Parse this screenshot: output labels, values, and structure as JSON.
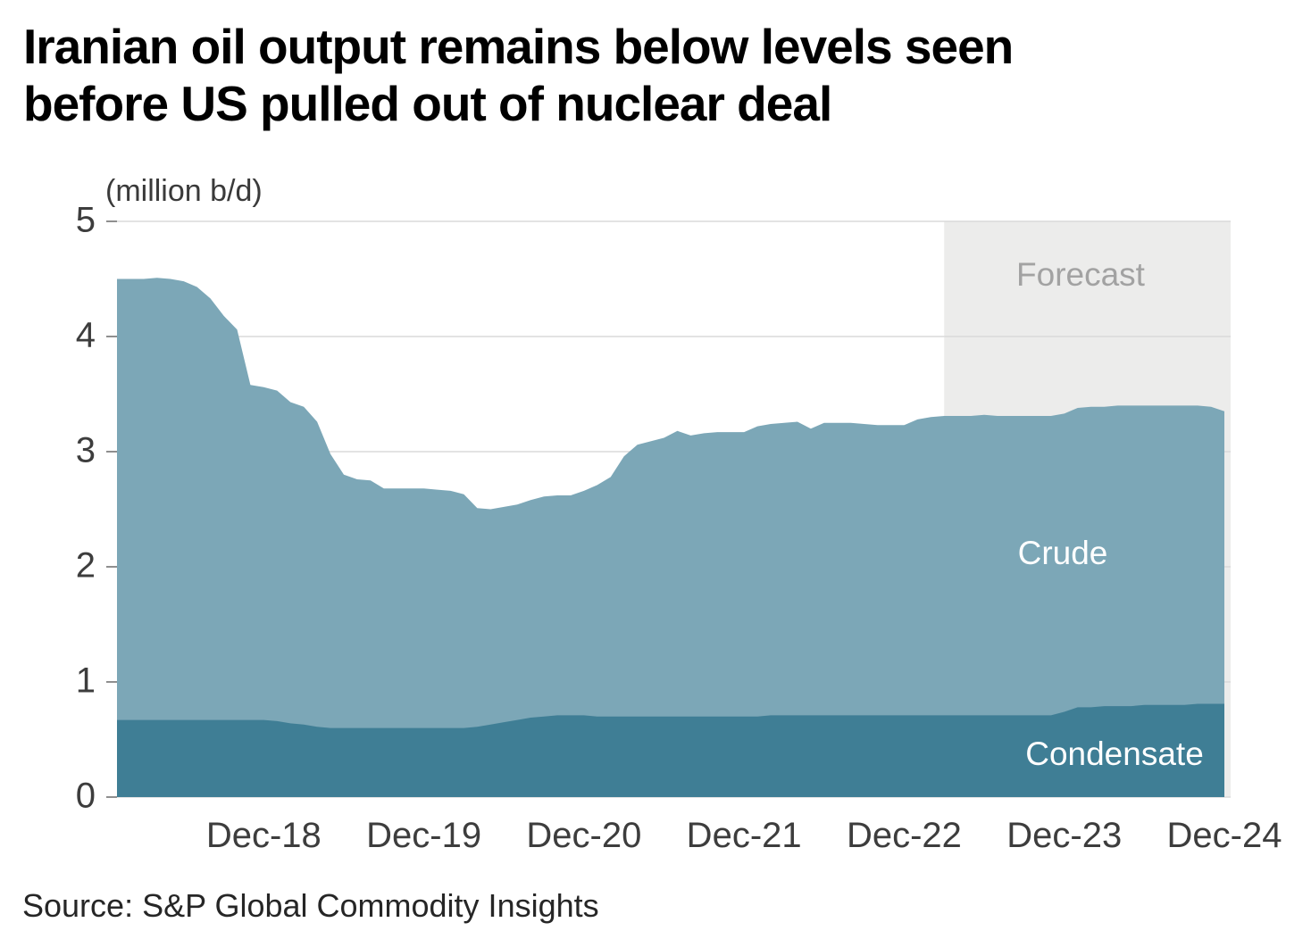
{
  "header": {
    "title_line1": "Iranian oil output remains below levels seen",
    "title_line2": "before US pulled out of nuclear deal"
  },
  "unit_label": "(million b/d)",
  "forecast_label": "Forecast",
  "crude_area_label": "Crude",
  "condensate_area_label": "Condensate",
  "source": "Source: S&P Global Commodity Insights",
  "colors": {
    "crude": "#7CA7B7",
    "condensate": "#3F7E95",
    "forecast_band": "#ECECEB",
    "gridline": "#DADADA",
    "tick": "#8F8F8F",
    "axis_text": "#3D3D3D",
    "forecast_text": "#A2A2A2",
    "area_label_text": "#FFFFFF",
    "title_text": "#000000",
    "source_text": "#262626"
  },
  "chart_data": {
    "type": "area",
    "stacked": true,
    "title": "Iranian oil output remains below levels seen before US pulled out of nuclear deal",
    "xlabel": "",
    "ylabel": "(million b/d)",
    "ylim": [
      0,
      5
    ],
    "y_ticks": [
      0,
      1,
      2,
      3,
      4,
      5
    ],
    "x_ticks": [
      "Dec-18",
      "Dec-19",
      "Dec-20",
      "Dec-21",
      "Dec-22",
      "Dec-23",
      "Dec-24"
    ],
    "grid": true,
    "forecast_start": "Mar-23",
    "legend_position": "labels-inside-areas",
    "categories": [
      "Jan-18",
      "Feb-18",
      "Mar-18",
      "Apr-18",
      "May-18",
      "Jun-18",
      "Jul-18",
      "Aug-18",
      "Sep-18",
      "Oct-18",
      "Nov-18",
      "Dec-18",
      "Jan-19",
      "Feb-19",
      "Mar-19",
      "Apr-19",
      "May-19",
      "Jun-19",
      "Jul-19",
      "Aug-19",
      "Sep-19",
      "Oct-19",
      "Nov-19",
      "Dec-19",
      "Jan-20",
      "Feb-20",
      "Mar-20",
      "Apr-20",
      "May-20",
      "Jun-20",
      "Jul-20",
      "Aug-20",
      "Sep-20",
      "Oct-20",
      "Nov-20",
      "Dec-20",
      "Jan-21",
      "Feb-21",
      "Mar-21",
      "Apr-21",
      "May-21",
      "Jun-21",
      "Jul-21",
      "Aug-21",
      "Sep-21",
      "Oct-21",
      "Nov-21",
      "Dec-21",
      "Jan-22",
      "Feb-22",
      "Mar-22",
      "Apr-22",
      "May-22",
      "Jun-22",
      "Jul-22",
      "Aug-22",
      "Sep-22",
      "Oct-22",
      "Nov-22",
      "Dec-22",
      "Jan-23",
      "Feb-23",
      "Mar-23",
      "Apr-23",
      "May-23",
      "Jun-23",
      "Jul-23",
      "Aug-23",
      "Sep-23",
      "Oct-23",
      "Nov-23",
      "Dec-23",
      "Jan-24",
      "Feb-24",
      "Mar-24",
      "Apr-24",
      "May-24",
      "Jun-24",
      "Jul-24",
      "Aug-24",
      "Sep-24",
      "Oct-24",
      "Nov-24",
      "Dec-24"
    ],
    "series": [
      {
        "name": "Condensate",
        "color": "#3F7E95",
        "values": [
          0.67,
          0.67,
          0.67,
          0.67,
          0.67,
          0.67,
          0.67,
          0.67,
          0.67,
          0.67,
          0.67,
          0.67,
          0.66,
          0.64,
          0.63,
          0.61,
          0.6,
          0.6,
          0.6,
          0.6,
          0.6,
          0.6,
          0.6,
          0.6,
          0.6,
          0.6,
          0.6,
          0.61,
          0.63,
          0.65,
          0.67,
          0.69,
          0.7,
          0.71,
          0.71,
          0.71,
          0.7,
          0.7,
          0.7,
          0.7,
          0.7,
          0.7,
          0.7,
          0.7,
          0.7,
          0.7,
          0.7,
          0.7,
          0.7,
          0.71,
          0.71,
          0.71,
          0.71,
          0.71,
          0.71,
          0.71,
          0.71,
          0.71,
          0.71,
          0.71,
          0.71,
          0.71,
          0.71,
          0.71,
          0.71,
          0.71,
          0.71,
          0.71,
          0.71,
          0.71,
          0.71,
          0.74,
          0.78,
          0.78,
          0.79,
          0.79,
          0.79,
          0.8,
          0.8,
          0.8,
          0.8,
          0.81,
          0.81,
          0.81
        ]
      },
      {
        "name": "Crude",
        "color": "#7CA7B7",
        "values": [
          3.83,
          3.83,
          3.83,
          3.84,
          3.83,
          3.81,
          3.76,
          3.66,
          3.51,
          3.39,
          2.91,
          2.89,
          2.87,
          2.79,
          2.76,
          2.65,
          2.38,
          2.2,
          2.16,
          2.15,
          2.08,
          2.08,
          2.08,
          2.08,
          2.07,
          2.06,
          2.03,
          1.9,
          1.87,
          1.87,
          1.87,
          1.89,
          1.91,
          1.91,
          1.91,
          1.95,
          2.01,
          2.08,
          2.26,
          2.36,
          2.39,
          2.42,
          2.48,
          2.44,
          2.46,
          2.47,
          2.47,
          2.47,
          2.52,
          2.53,
          2.54,
          2.55,
          2.49,
          2.54,
          2.54,
          2.54,
          2.53,
          2.52,
          2.52,
          2.52,
          2.57,
          2.59,
          2.6,
          2.6,
          2.6,
          2.61,
          2.6,
          2.6,
          2.6,
          2.6,
          2.6,
          2.59,
          2.6,
          2.61,
          2.6,
          2.61,
          2.61,
          2.6,
          2.6,
          2.6,
          2.6,
          2.59,
          2.58,
          2.54
        ]
      }
    ]
  }
}
